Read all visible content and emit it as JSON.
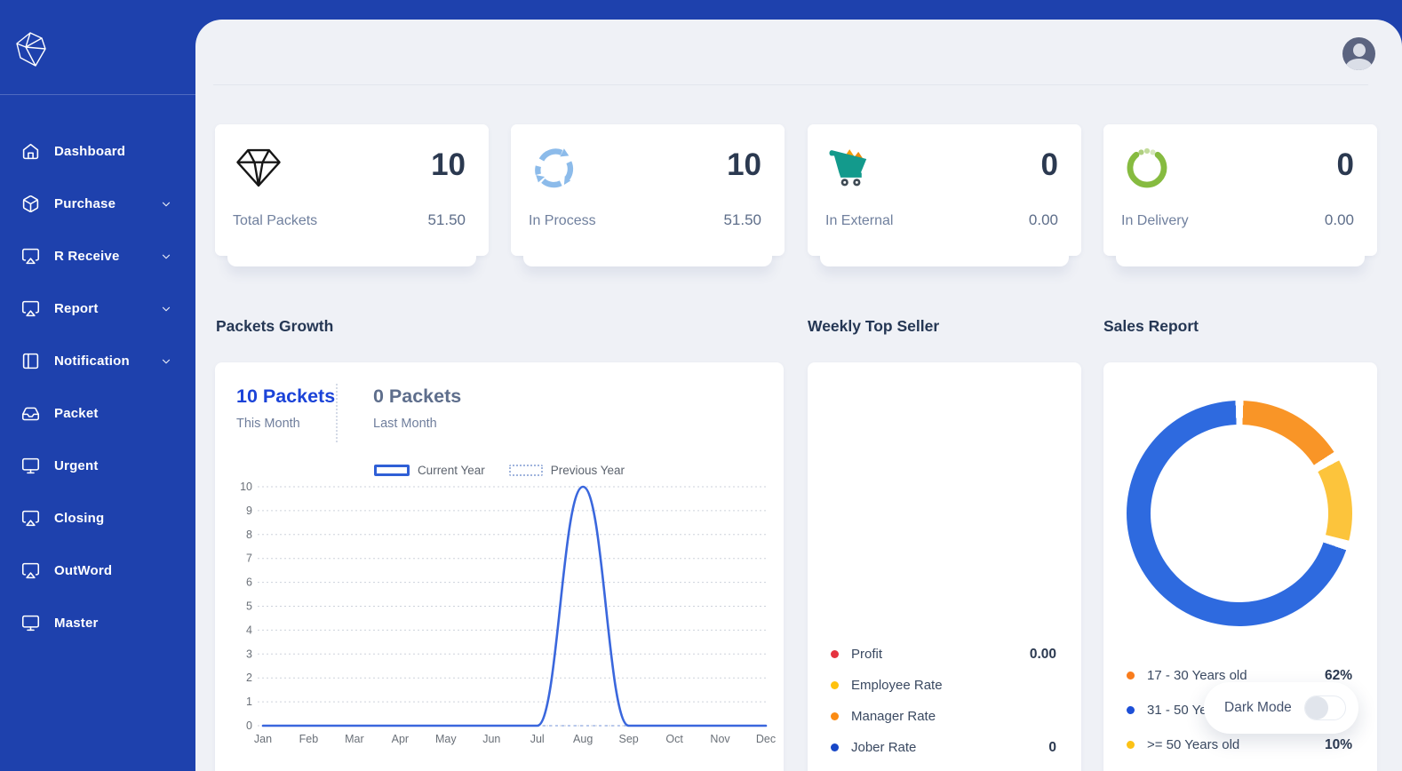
{
  "sidebar": {
    "items": [
      {
        "label": "Dashboard",
        "icon": "home-icon",
        "has_submenu": false
      },
      {
        "label": "Purchase",
        "icon": "cube-icon",
        "has_submenu": true
      },
      {
        "label": "R Receive",
        "icon": "airplay-icon",
        "has_submenu": true
      },
      {
        "label": "Report",
        "icon": "airplay-icon",
        "has_submenu": true
      },
      {
        "label": "Notification",
        "icon": "columns-icon",
        "has_submenu": true
      },
      {
        "label": "Packet",
        "icon": "inbox-icon",
        "has_submenu": false
      },
      {
        "label": "Urgent",
        "icon": "monitor-icon",
        "has_submenu": false
      },
      {
        "label": "Closing",
        "icon": "airplay-icon",
        "has_submenu": false
      },
      {
        "label": "OutWord",
        "icon": "airplay-icon",
        "has_submenu": false
      },
      {
        "label": "Master",
        "icon": "monitor-icon",
        "has_submenu": false
      }
    ]
  },
  "stats": {
    "cards": [
      {
        "label": "Total Packets",
        "value": "10",
        "sub": "51.50",
        "icon": "diamond-icon"
      },
      {
        "label": "In Process",
        "value": "10",
        "sub": "51.50",
        "icon": "sync-arrows-icon"
      },
      {
        "label": "In External",
        "value": "0",
        "sub": "0.00",
        "icon": "cart-icon"
      },
      {
        "label": "In Delivery",
        "value": "0",
        "sub": "0.00",
        "icon": "loader-icon"
      }
    ]
  },
  "sections": {
    "growth_title": "Packets Growth",
    "weekly_title": "Weekly Top Seller",
    "sales_title": "Sales Report"
  },
  "growth": {
    "this_value": "10 Packets",
    "this_label": "This Month",
    "last_value": "0 Packets",
    "last_label": "Last Month",
    "legend_current": "Current Year",
    "legend_previous": "Previous Year"
  },
  "chart_data": [
    {
      "type": "line",
      "title": "Packets Growth",
      "categories": [
        "Jan",
        "Feb",
        "Mar",
        "Apr",
        "May",
        "Jun",
        "Jul",
        "Aug",
        "Sep",
        "Oct",
        "Nov",
        "Dec"
      ],
      "series": [
        {
          "name": "Current Year",
          "values": [
            0,
            0,
            0,
            0,
            0,
            0,
            0,
            10,
            0,
            0,
            0,
            0
          ],
          "color": "#3A67DD",
          "style": "solid"
        },
        {
          "name": "Previous Year",
          "values": [
            0,
            0,
            0,
            0,
            0,
            0,
            0,
            0,
            0,
            0,
            0,
            0
          ],
          "color": "#9FB4DD",
          "style": "dotted"
        }
      ],
      "ylim": [
        0,
        10
      ],
      "ytick_labels": [
        "10",
        "9",
        "8",
        "7",
        "6",
        "5",
        "4",
        "3",
        "2",
        "1",
        "0"
      ],
      "grid": "dotted-horizontal",
      "legend_position": "top-center"
    },
    {
      "type": "pie",
      "title": "Weekly Top Seller",
      "note_chart_area": "empty",
      "legend": [
        {
          "label": "Profit",
          "value": "0.00",
          "color": "#E5333F"
        },
        {
          "label": "Employee Rate",
          "value": "",
          "color": "#FFC20E"
        },
        {
          "label": "Manager Rate",
          "value": "",
          "color": "#FB8B13"
        },
        {
          "label": "Jober Rate",
          "value": "0",
          "color": "#1847C7"
        }
      ],
      "legend_position": "bottom-left"
    },
    {
      "type": "pie",
      "title": "Sales Report",
      "legend": [
        {
          "label": "17 - 30 Years old",
          "value": "62%",
          "color": "#F97C1C"
        },
        {
          "label": "31 - 50 Years old",
          "value": "",
          "color": "#1D4FD7"
        },
        {
          "label": ">= 50 Years old",
          "value": "10%",
          "color": "#FCC216"
        }
      ],
      "arcs": [
        {
          "color": "#F99527",
          "from": 2,
          "to": 57
        },
        {
          "color": "#FCC43C",
          "from": 62,
          "to": 104
        },
        {
          "color": "#2E6ADF",
          "from": 109,
          "to": 358
        }
      ],
      "hole_color": "#FFFFFF",
      "legend_position": "bottom-left"
    }
  ],
  "dark_mode": {
    "label": "Dark Mode",
    "state": "off"
  },
  "colors": {
    "sidebar": "#1E41AD",
    "panel_bg": "#EFF1F6",
    "accent_blue": "#1B43D8",
    "line_blue": "#3A67DD"
  }
}
